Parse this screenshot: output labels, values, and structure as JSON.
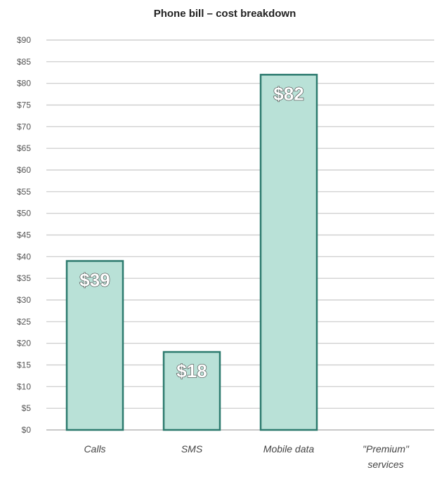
{
  "chart_data": {
    "type": "bar",
    "title": "Phone bill – cost breakdown",
    "categories": [
      [
        "Calls"
      ],
      [
        "SMS"
      ],
      [
        "Mobile data"
      ],
      [
        "\"Premium\"",
        "services"
      ]
    ],
    "values": [
      39,
      18,
      82,
      0
    ],
    "data_labels": [
      "$39",
      "$18",
      "$82",
      ""
    ],
    "ylim": [
      0,
      90
    ],
    "yticks": [
      0,
      5,
      10,
      15,
      20,
      25,
      30,
      35,
      40,
      45,
      50,
      55,
      60,
      65,
      70,
      75,
      80,
      85,
      90
    ],
    "ytick_prefix": "$",
    "xlabel": "",
    "ylabel": "",
    "grid": true,
    "legend": "none",
    "colors": {
      "bar_fill": "#b9e1d7",
      "bar_stroke": "#2c7a6e",
      "grid": "#c8c8c8",
      "axis": "#b5b5b5"
    }
  }
}
